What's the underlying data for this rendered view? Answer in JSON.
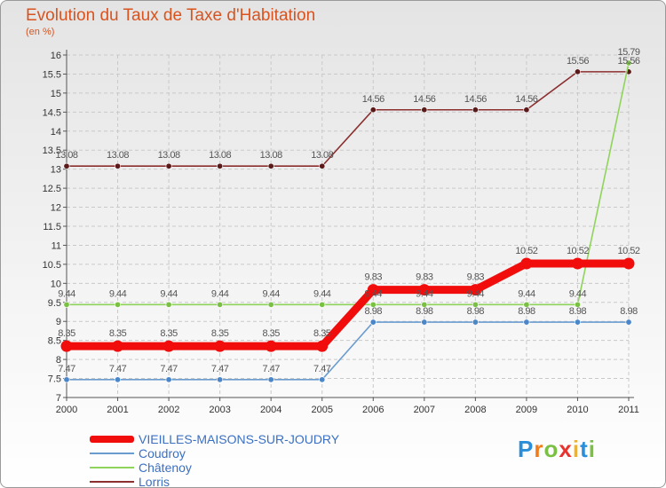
{
  "chart_data": {
    "type": "line",
    "title": "Evolution du Taux de Taxe d'Habitation",
    "unit_label": "(en %)",
    "xlabel": "",
    "ylabel": "(en %)",
    "ylim": [
      7,
      16
    ],
    "y_ticks": [
      "7",
      "7.5",
      "8",
      "8.5",
      "9",
      "9.5",
      "10",
      "10.5",
      "11",
      "11.5",
      "12",
      "12.5",
      "13",
      "13.5",
      "14",
      "14.5",
      "15",
      "15.5",
      "16"
    ],
    "categories": [
      "2000",
      "2001",
      "2002",
      "2003",
      "2004",
      "2005",
      "2006",
      "2007",
      "2008",
      "2009",
      "2010",
      "2011"
    ],
    "grid": true,
    "legend_position": "bottom-left",
    "series": [
      {
        "name": "Lorris",
        "color": "#8b2f2f",
        "dot_color": "#5a1a1a",
        "values": [
          13.08,
          13.08,
          13.08,
          13.08,
          13.08,
          13.08,
          14.56,
          14.56,
          14.56,
          14.56,
          15.56,
          15.56
        ],
        "labels": [
          "13.08",
          "13.08",
          "13.08",
          "13.08",
          "13.08",
          "13.08",
          "14.56",
          "14.56",
          "14.56",
          "14.56",
          "15.56",
          "15.56"
        ]
      },
      {
        "name": "Châtenoy",
        "color": "#8fd45a",
        "dot_color": "#7ac143",
        "values": [
          9.44,
          9.44,
          9.44,
          9.44,
          9.44,
          9.44,
          9.44,
          9.44,
          9.44,
          9.44,
          9.44,
          15.79
        ],
        "labels": [
          "9.44",
          "9.44",
          "9.44",
          "9.44",
          "9.44",
          "9.44",
          "9.44",
          "9.44",
          "9.44",
          "9.44",
          "9.44",
          "15.79"
        ]
      },
      {
        "name": "Coudroy",
        "color": "#6a9cd0",
        "dot_color": "#4a86c8",
        "values": [
          7.47,
          7.47,
          7.47,
          7.47,
          7.47,
          7.47,
          8.98,
          8.98,
          8.98,
          8.98,
          8.98,
          8.98
        ],
        "labels": [
          "7.47",
          "7.47",
          "7.47",
          "7.47",
          "7.47",
          "7.47",
          "8.98",
          "8.98",
          "8.98",
          "8.98",
          "8.98",
          "8.98"
        ]
      },
      {
        "name": "VIEILLES-MAISONS-SUR-JOUDRY",
        "color": "#f20d0d",
        "dot_color": "#f20d0d",
        "values": [
          8.35,
          8.35,
          8.35,
          8.35,
          8.35,
          8.35,
          9.83,
          9.83,
          9.83,
          10.52,
          10.52,
          10.52
        ],
        "labels": [
          "8.35",
          "8.35",
          "8.35",
          "8.35",
          "8.35",
          "8.35",
          "9.83",
          "9.83",
          "9.83",
          "10.52",
          "10.52",
          "10.52"
        ]
      }
    ]
  },
  "legend": {
    "items": [
      {
        "label": "VIEILLES-MAISONS-SUR-JOUDRY",
        "color": "#f20d0d"
      },
      {
        "label": "Coudroy",
        "color": "#6a9cd0"
      },
      {
        "label": "Châtenoy",
        "color": "#8fd45a"
      },
      {
        "label": "Lorris",
        "color": "#8b2f2f"
      }
    ]
  },
  "logo": {
    "text": "Proxiti",
    "letters": [
      "P",
      "r",
      "o",
      "x",
      "i",
      "t",
      "i"
    ],
    "letter_colors": [
      "#2a8fd8",
      "#f07c1a",
      "#7ac143",
      "#e8322b",
      "#f5b21b",
      "#2a8fd8",
      "#7ac143"
    ]
  }
}
